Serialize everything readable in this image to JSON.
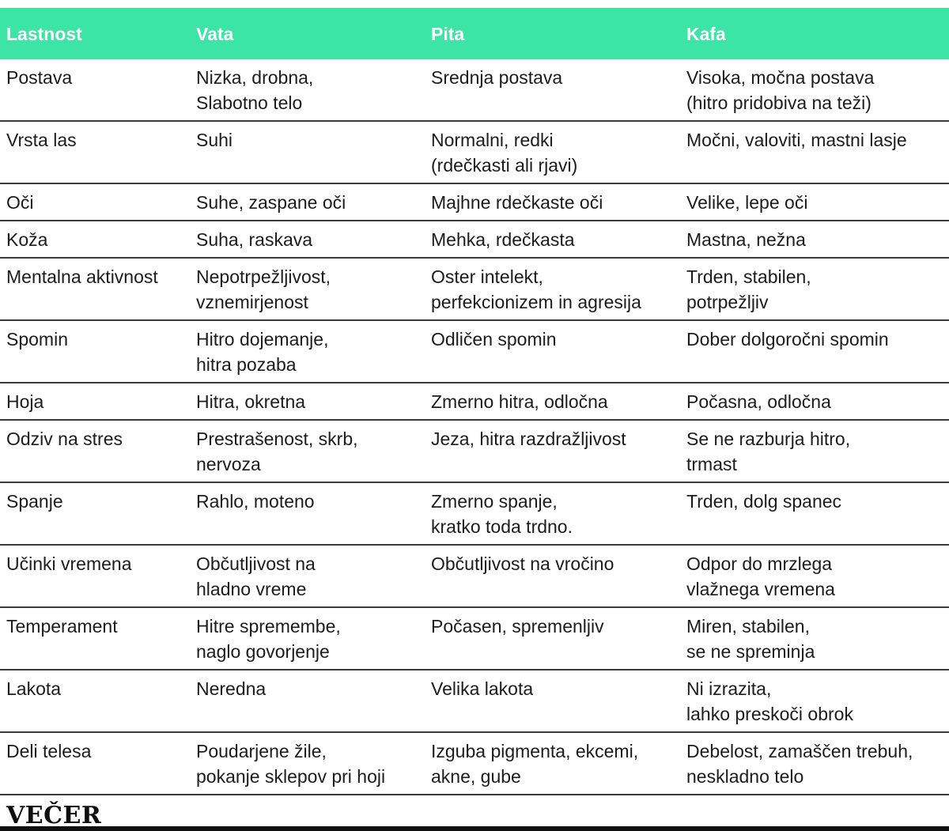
{
  "chart_data": {
    "type": "table",
    "columns": [
      "Lastnost",
      "Vata",
      "Pita",
      "Kafa"
    ],
    "rows": [
      [
        "Postava",
        "Nizka, drobna,\nSlabotno telo",
        "Srednja postava",
        "Visoka, močna postava\n(hitro pridobiva na teži)"
      ],
      [
        "Vrsta las",
        "Suhi",
        "Normalni, redki\n(rdečkasti ali rjavi)",
        "Močni, valoviti, mastni lasje"
      ],
      [
        "Oči",
        "Suhe, zaspane oči",
        "Majhne rdečkaste oči",
        "Velike, lepe oči"
      ],
      [
        "Koža",
        "Suha, raskava",
        "Mehka, rdečkasta",
        "Mastna, nežna"
      ],
      [
        "Mentalna aktivnost",
        "Nepotrpežljivost,\nvznemirjenost",
        "Oster intelekt,\nperfekcionizem in agresija",
        "Trden, stabilen,\npotrpežljiv"
      ],
      [
        "Spomin",
        "Hitro dojemanje,\nhitra pozaba",
        "Odličen spomin",
        "Dober dolgoročni spomin"
      ],
      [
        "Hoja",
        "Hitra, okretna",
        "Zmerno hitra, odločna",
        "Počasna, odločna"
      ],
      [
        "Odziv na stres",
        "Prestrašenost, skrb,\nnervoza",
        "Jeza, hitra razdražljivost",
        "Se ne razburja hitro,\ntrmast"
      ],
      [
        "Spanje",
        "Rahlo, moteno",
        "Zmerno spanje,\nkratko toda trdno.",
        "Trden, dolg spanec"
      ],
      [
        "Učinki vremena",
        "Občutljivost na\nhladno vreme",
        "Občutljivost na vročino",
        "Odpor do mrzlega\nvlažnega vremena"
      ],
      [
        "Temperament",
        "Hitre spremembe,\nnaglo govorjenje",
        "Počasen, spremenljiv",
        "Miren, stabilen,\nse ne spreminja"
      ],
      [
        "Lakota",
        "Neredna",
        "Velika lakota",
        "Ni izrazita,\nlahko preskoči obrok"
      ],
      [
        "Deli telesa",
        "Poudarjene žile,\npokanje sklepov pri hoji",
        "Izguba pigmenta, ekcemi,\nakne, gube",
        "Debelost, zamaščen trebuh,\nneskladno telo"
      ]
    ],
    "title": ""
  },
  "footer": {
    "brand": "VEČER"
  },
  "colors": {
    "header_bg": "#3ce4a6",
    "header_text": "#ffffff",
    "body_text": "#1c1c1c",
    "row_line": "#3a3a3a",
    "bottom_bar": "#101010"
  }
}
